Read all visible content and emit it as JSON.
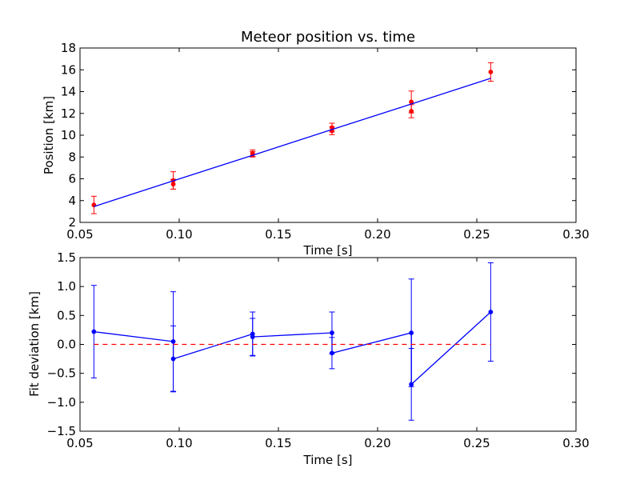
{
  "chart_data": [
    {
      "type": "scatter",
      "title": "Meteor position vs. time",
      "xlabel": "Time [s]",
      "ylabel": "Position [km]",
      "xlim": [
        0.05,
        0.3
      ],
      "ylim": [
        2,
        18
      ],
      "xticks": [
        "0.05",
        "0.10",
        "0.15",
        "0.20",
        "0.25",
        "0.30"
      ],
      "yticks": [
        "2",
        "4",
        "6",
        "8",
        "10",
        "12",
        "14",
        "16",
        "18"
      ],
      "grid": false,
      "series": [
        {
          "kind": "errorbar-points",
          "color": "#ff0000",
          "x": [
            0.057,
            0.097,
            0.097,
            0.137,
            0.137,
            0.177,
            0.177,
            0.217,
            0.217,
            0.257
          ],
          "y": [
            3.6,
            5.85,
            5.5,
            8.35,
            8.25,
            10.7,
            10.4,
            13.05,
            12.2,
            15.8
          ],
          "yerr": [
            0.8,
            0.8,
            0.45,
            0.3,
            0.25,
            0.4,
            0.35,
            1.0,
            0.6,
            0.85
          ]
        },
        {
          "kind": "fit-line",
          "color": "#0000ff",
          "x": [
            0.057,
            0.097,
            0.137,
            0.177,
            0.217,
            0.257
          ],
          "y": [
            3.45,
            5.82,
            8.16,
            10.52,
            12.86,
            15.22
          ]
        }
      ]
    },
    {
      "type": "line",
      "title": "",
      "xlabel": "Time [s]",
      "ylabel": "Fit deviation [km]",
      "xlim": [
        0.05,
        0.3
      ],
      "ylim": [
        -1.5,
        1.5
      ],
      "xticks": [
        "0.05",
        "0.10",
        "0.15",
        "0.20",
        "0.25",
        "0.30"
      ],
      "yticks": [
        "−1.5",
        "−1.0",
        "−0.5",
        "0.0",
        "0.5",
        "1.0",
        "1.5"
      ],
      "grid": false,
      "series": [
        {
          "kind": "residuals",
          "color": "#0000ff",
          "x": [
            0.057,
            0.097,
            0.097,
            0.137,
            0.137,
            0.177,
            0.177,
            0.217,
            0.217,
            0.257
          ],
          "y": [
            0.22,
            0.05,
            -0.25,
            0.18,
            0.13,
            0.2,
            -0.15,
            0.2,
            -0.69,
            0.56
          ],
          "yerr": [
            0.8,
            0.86,
            0.57,
            0.38,
            0.32,
            0.36,
            0.27,
            0.93,
            0.62,
            0.85
          ]
        },
        {
          "kind": "zero-reference",
          "color": "#ff0000",
          "style": "dashed",
          "x": [
            0.057,
            0.257
          ],
          "y": [
            0.0,
            0.0
          ]
        }
      ]
    }
  ]
}
